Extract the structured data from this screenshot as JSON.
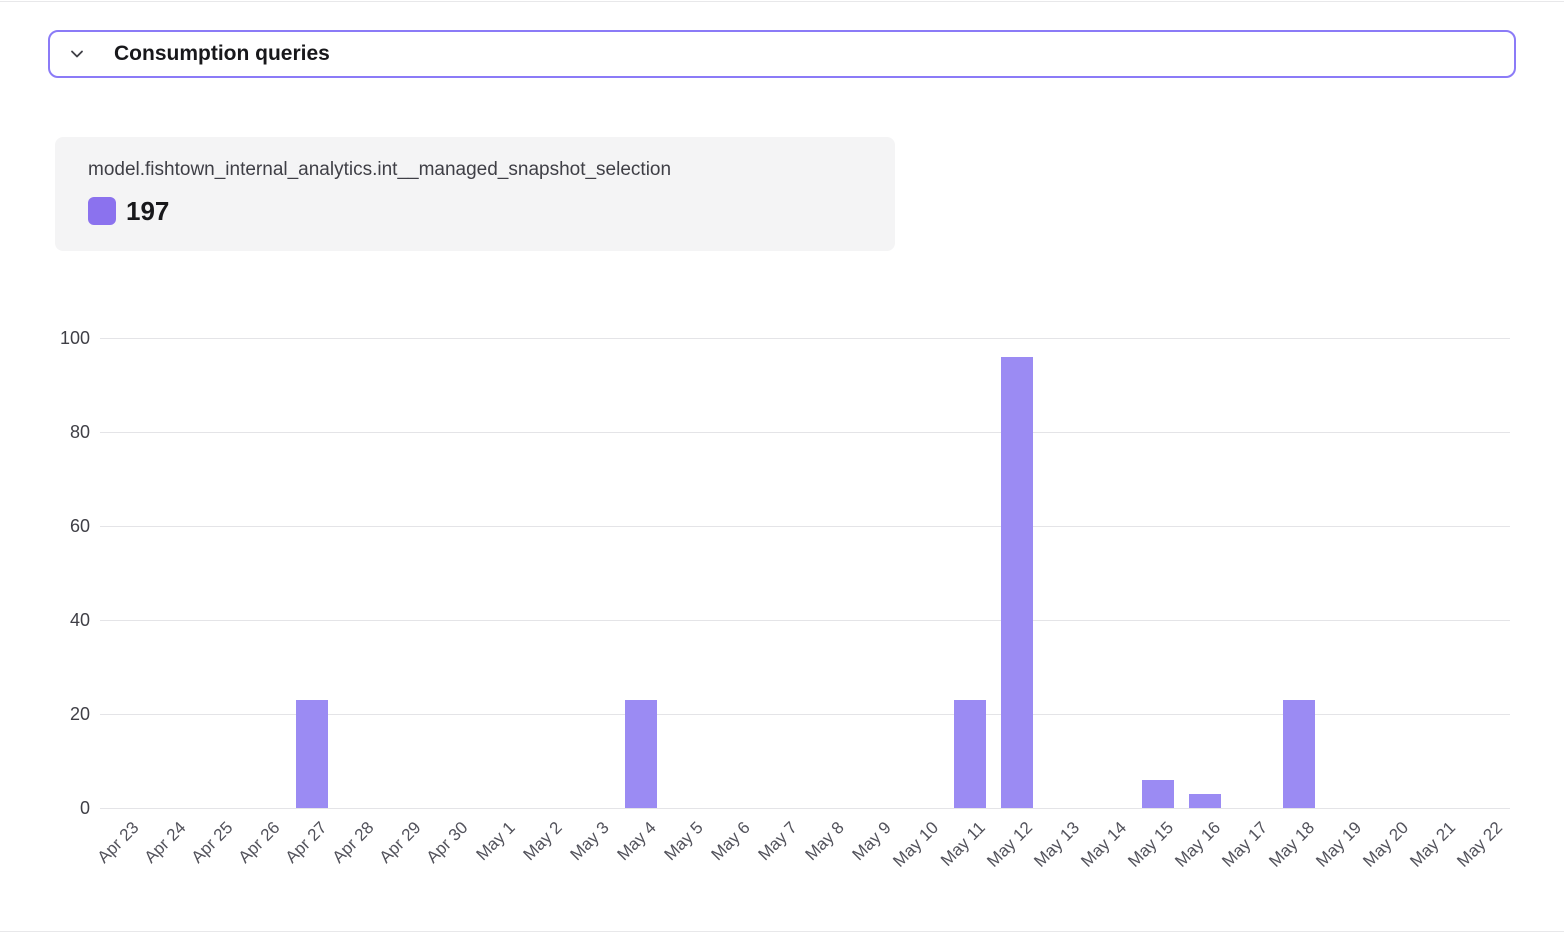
{
  "panel": {
    "title": "Consumption queries"
  },
  "tooltip": {
    "model_name": "model.fishtown_internal_analytics.int__managed_snapshot_selection",
    "legend_value": "197"
  },
  "icons": {
    "chevron": "chevron-down-icon"
  },
  "colors": {
    "accent_border": "#8b7bf7",
    "bar": "#9b8bf3",
    "legend_swatch": "#8b72ee",
    "gridline": "#e4e4e7",
    "tooltip_bg": "#f4f4f5"
  },
  "chart_data": {
    "type": "bar",
    "title": "",
    "xlabel": "",
    "ylabel": "",
    "legend_position": "top-left-tooltip",
    "grid": true,
    "series_name": "model.fishtown_internal_analytics.int__managed_snapshot_selection",
    "total": 197,
    "ylim": [
      0,
      100
    ],
    "yticks": [
      0,
      20,
      40,
      60,
      80,
      100
    ],
    "categories": [
      "Apr 23",
      "Apr 24",
      "Apr 25",
      "Apr 26",
      "Apr 27",
      "Apr 28",
      "Apr 29",
      "Apr 30",
      "May 1",
      "May 2",
      "May 3",
      "May 4",
      "May 5",
      "May 6",
      "May 7",
      "May 8",
      "May 9",
      "May 10",
      "May 11",
      "May 12",
      "May 13",
      "May 14",
      "May 15",
      "May 16",
      "May 17",
      "May 18",
      "May 19",
      "May 20",
      "May 21",
      "May 22"
    ],
    "values": [
      0,
      0,
      0,
      0,
      23,
      0,
      0,
      0,
      0,
      0,
      0,
      23,
      0,
      0,
      0,
      0,
      0,
      0,
      23,
      96,
      0,
      0,
      6,
      3,
      0,
      23,
      0,
      0,
      0,
      0
    ]
  }
}
